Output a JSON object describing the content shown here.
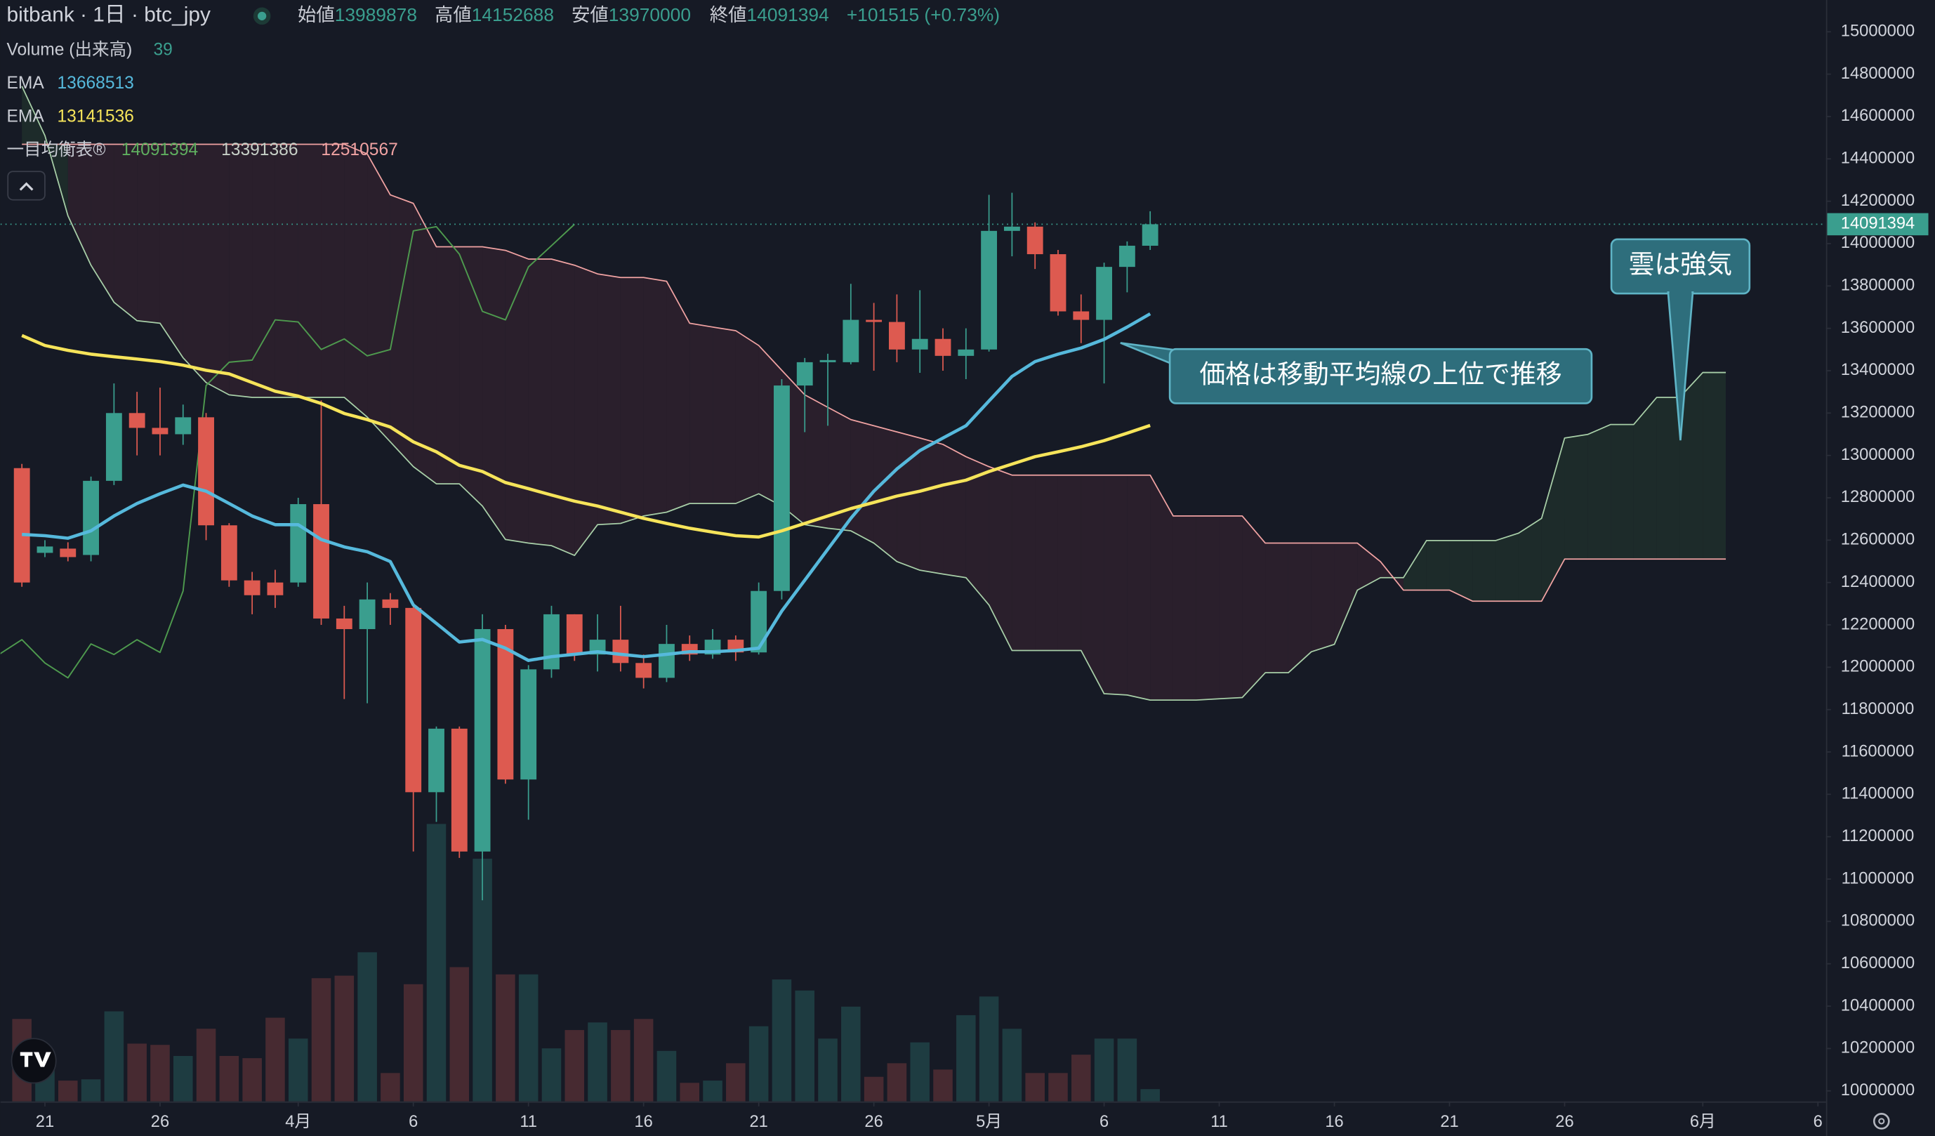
{
  "chart_data": {
    "type": "candlestick",
    "title": "bitbank · 1日 · btc_jpy",
    "ohlc_labels": {
      "open": "始値",
      "high": "高値",
      "low": "安値",
      "close": "終値"
    },
    "change_label": "+101515 (+0.73%)",
    "legend": {
      "volume": "Volume (出来高)",
      "ichimoku": "一目均衡表®"
    },
    "up_color": "#3a9e8e",
    "down_color": "#dd5a50",
    "volume_up_color": "#1e3c41",
    "volume_down_color": "#472a31",
    "xlim": [
      -1.93,
      77.35
    ],
    "xticks": [
      {
        "value": 0,
        "label": "21"
      },
      {
        "value": 5,
        "label": "26"
      },
      {
        "value": 11,
        "label": "4月"
      },
      {
        "value": 16,
        "label": "6"
      },
      {
        "value": 21,
        "label": "11"
      },
      {
        "value": 26,
        "label": "16"
      },
      {
        "value": 31,
        "label": "21"
      },
      {
        "value": 36,
        "label": "26"
      },
      {
        "value": 41,
        "label": "5月"
      },
      {
        "value": 46,
        "label": "6"
      },
      {
        "value": 51,
        "label": "11"
      },
      {
        "value": 56,
        "label": "16"
      },
      {
        "value": 61,
        "label": "21"
      },
      {
        "value": 66,
        "label": "26"
      },
      {
        "value": 72,
        "label": "6月"
      },
      {
        "value": 77,
        "label": "6"
      }
    ],
    "ylim": [
      9950000,
      15150000
    ],
    "yticks": [
      10000000,
      10200000,
      10400000,
      10600000,
      10800000,
      11000000,
      11200000,
      11400000,
      11600000,
      11800000,
      12000000,
      12200000,
      12400000,
      12600000,
      12800000,
      13000000,
      13200000,
      13400000,
      13600000,
      13800000,
      14000000,
      14200000,
      14400000,
      14600000,
      14800000,
      15000000
    ],
    "grid": false,
    "x": [
      -1,
      0,
      1,
      2,
      3,
      4,
      5,
      6,
      7,
      8,
      9,
      10,
      11,
      12,
      13,
      14,
      15,
      16,
      17,
      18,
      19,
      20,
      21,
      22,
      23,
      24,
      25,
      26,
      27,
      28,
      29,
      30,
      31,
      32,
      33,
      34,
      35,
      36,
      37,
      38,
      39,
      40,
      41,
      42,
      43,
      44,
      45,
      46,
      47,
      48
    ],
    "open": [
      12940000,
      12540000,
      12560000,
      12530000,
      12880000,
      13200000,
      13130000,
      13100000,
      13180000,
      12670000,
      12410000,
      12400000,
      12400000,
      12770000,
      12230000,
      12180000,
      12320000,
      12280000,
      11410000,
      11710000,
      11130000,
      12180000,
      11470000,
      11990000,
      12250000,
      12060000,
      12130000,
      12020000,
      11950000,
      12110000,
      12060000,
      12130000,
      12070000,
      12360000,
      13330000,
      13440000,
      13440000,
      13640000,
      13630000,
      13500000,
      13550000,
      13470000,
      13500000,
      14060000,
      14080000,
      13950000,
      13680000,
      13640000,
      13890000,
      13989878
    ],
    "high": [
      12960000,
      12600000,
      12590000,
      12900000,
      13340000,
      13300000,
      13320000,
      13240000,
      13200000,
      12680000,
      12450000,
      12460000,
      12800000,
      13260000,
      12290000,
      12400000,
      12350000,
      12300000,
      11720000,
      11720000,
      12250000,
      12200000,
      12010000,
      12290000,
      12250000,
      12250000,
      12290000,
      12060000,
      12200000,
      12150000,
      12180000,
      12150000,
      12400000,
      13360000,
      13460000,
      13480000,
      13810000,
      13720000,
      13760000,
      13780000,
      13600000,
      13600000,
      14230000,
      14240000,
      14100000,
      13970000,
      13760000,
      13910000,
      14010000,
      14152688
    ],
    "low": [
      12380000,
      12520000,
      12500000,
      12500000,
      12860000,
      13000000,
      13000000,
      13050000,
      12600000,
      12380000,
      12250000,
      12280000,
      12380000,
      12200000,
      11850000,
      11830000,
      12200000,
      11130000,
      11270000,
      11100000,
      10900000,
      11450000,
      11280000,
      11950000,
      12030000,
      11980000,
      11980000,
      11900000,
      11930000,
      12030000,
      12040000,
      12030000,
      12060000,
      12320000,
      13110000,
      13140000,
      13430000,
      13400000,
      13440000,
      13390000,
      13400000,
      13360000,
      13490000,
      13940000,
      13880000,
      13660000,
      13530000,
      13340000,
      13770000,
      13970000
    ],
    "close": [
      12400000,
      12570000,
      12520000,
      12880000,
      13200000,
      13130000,
      13100000,
      13180000,
      12670000,
      12410000,
      12340000,
      12340000,
      12770000,
      12230000,
      12180000,
      12320000,
      12280000,
      11410000,
      11710000,
      11130000,
      12180000,
      11470000,
      11990000,
      12250000,
      12060000,
      12130000,
      12020000,
      11950000,
      12110000,
      12060000,
      12130000,
      12070000,
      12360000,
      13330000,
      13440000,
      13450000,
      13640000,
      13630000,
      13500000,
      13550000,
      13470000,
      13500000,
      14060000,
      14080000,
      13950000,
      13680000,
      13640000,
      13890000,
      13990000,
      14091394
    ],
    "volume": [
      261,
      148,
      66,
      70,
      285,
      183,
      179,
      144,
      230,
      144,
      137,
      265,
      199,
      390,
      398,
      472,
      90,
      371,
      878,
      425,
      768,
      402,
      402,
      168,
      226,
      250,
      226,
      261,
      160,
      59,
      66,
      121,
      238,
      386,
      351,
      199,
      300,
      78,
      121,
      187,
      101,
      273,
      332,
      230,
      90,
      90,
      148,
      199,
      199,
      39
    ],
    "series": [
      {
        "name": "EMA",
        "color": "#56b9dc",
        "values": [
          12627000,
          12621000,
          12609000,
          12644000,
          12714000,
          12773000,
          12819000,
          12860000,
          12831000,
          12773000,
          12714000,
          12673000,
          12673000,
          12603000,
          12568000,
          12545000,
          12499000,
          12294000,
          12207000,
          12119000,
          12131000,
          12090000,
          12032000,
          12050000,
          12061000,
          12073000,
          12061000,
          12050000,
          12061000,
          12073000,
          12073000,
          12079000,
          12090000,
          12265000,
          12411000,
          12557000,
          12703000,
          12831000,
          12936000,
          13023000,
          13082000,
          13140000,
          13257000,
          13373000,
          13443000,
          13478000,
          13507000,
          13548000,
          13606000,
          13668513
        ]
      },
      {
        "name": "EMA",
        "color": "#f6e45a",
        "values": [
          13566000,
          13519000,
          13496000,
          13478000,
          13466000,
          13455000,
          13443000,
          13426000,
          13402000,
          13385000,
          13344000,
          13303000,
          13280000,
          13245000,
          13198000,
          13169000,
          13134000,
          13064000,
          13017000,
          12953000,
          12924000,
          12872000,
          12843000,
          12813000,
          12784000,
          12761000,
          12732000,
          12703000,
          12679000,
          12656000,
          12638000,
          12621000,
          12615000,
          12644000,
          12679000,
          12714000,
          12749000,
          12778000,
          12808000,
          12831000,
          12860000,
          12883000,
          12924000,
          12959000,
          12994000,
          13017000,
          13041000,
          13070000,
          13105000,
          13141536
        ]
      }
    ],
    "ichimoku": {
      "lagging_color": "#4e9a4e",
      "span_a_color": "#a8cfa8",
      "span_b_color": "#f1a3a3",
      "bull_fill": "#1d2b2a",
      "bear_fill": "#2a1f2c",
      "x": [
        -1,
        0,
        1,
        2,
        3,
        4,
        5,
        6,
        7,
        8,
        9,
        10,
        11,
        12,
        13,
        14,
        15,
        16,
        17,
        18,
        19,
        20,
        21,
        22,
        23,
        24,
        25,
        26,
        27,
        28,
        29,
        30,
        31,
        32,
        33,
        34,
        35,
        36,
        37,
        38,
        39,
        40,
        41,
        42,
        43,
        44,
        45,
        46,
        47,
        48,
        49,
        50,
        51,
        52,
        53,
        54,
        55,
        56,
        57,
        58,
        59,
        60,
        61,
        62,
        63,
        64,
        65,
        66,
        67,
        68,
        69,
        70,
        71,
        72,
        73
      ],
      "span_a": [
        14743000,
        14510000,
        14131000,
        13898000,
        13723000,
        13636000,
        13624000,
        13461000,
        13344000,
        13286000,
        13274000,
        13274000,
        13274000,
        13274000,
        13274000,
        13181000,
        13064000,
        12947000,
        12866000,
        12866000,
        12761000,
        12603000,
        12586000,
        12574000,
        12528000,
        12673000,
        12679000,
        12714000,
        12732000,
        12773000,
        12773000,
        12773000,
        12819000,
        12761000,
        12673000,
        12656000,
        12644000,
        12586000,
        12499000,
        12458000,
        12440000,
        12423000,
        12294000,
        12079000,
        12079000,
        12079000,
        12079000,
        11875000,
        11869000,
        11845000,
        11845000,
        11845000,
        11851000,
        11857000,
        11974000,
        11974000,
        12073000,
        12108000,
        12364000,
        12423000,
        12423000,
        12598000,
        12598000,
        12598000,
        12598000,
        12633000,
        12703000,
        13082000,
        13099000,
        13146000,
        13146000,
        13274000,
        13274000,
        13391386,
        13391386
      ],
      "span_b": [
        14469000,
        14469000,
        14469000,
        14469000,
        14469000,
        14469000,
        14469000,
        14469000,
        14469000,
        14469000,
        14469000,
        14469000,
        14469000,
        14469000,
        14469000,
        14423000,
        14230000,
        14190000,
        13985000,
        13985000,
        13985000,
        13968000,
        13927000,
        13927000,
        13898000,
        13857000,
        13840000,
        13840000,
        13822000,
        13624000,
        13606000,
        13589000,
        13519000,
        13402000,
        13286000,
        13227000,
        13169000,
        13140000,
        13111000,
        13082000,
        13052000,
        12994000,
        12947000,
        12907000,
        12907000,
        12907000,
        12907000,
        12907000,
        12907000,
        12907000,
        12714000,
        12714000,
        12714000,
        12714000,
        12586000,
        12586000,
        12586000,
        12586000,
        12586000,
        12499000,
        12364000,
        12364000,
        12364000,
        12312000,
        12312000,
        12312000,
        12312000,
        12510567,
        12510567,
        12510567,
        12510567,
        12510567,
        12510567,
        12510567,
        12510567
      ]
    },
    "annotations": [
      "価格は移動平均線の上位で推移",
      "雲は強気"
    ]
  }
}
